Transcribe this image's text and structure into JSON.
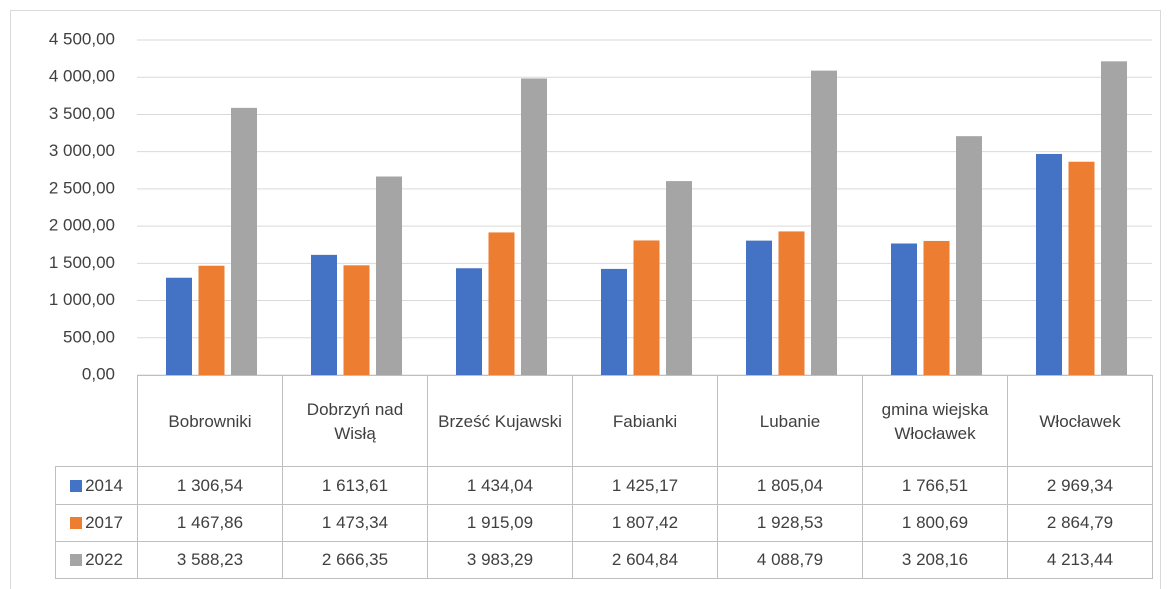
{
  "chart_data": {
    "type": "bar",
    "categories": [
      "Bobrowniki",
      "Dobrzyń nad Wisłą",
      "Brześć Kujawski",
      "Fabianki",
      "Lubanie",
      "gmina wiejska Włocławek",
      "Włocławek"
    ],
    "series": [
      {
        "name": "2014",
        "color": "#4472c4",
        "values": [
          1306.54,
          1613.61,
          1434.04,
          1425.17,
          1805.04,
          1766.51,
          2969.34
        ],
        "value_labels": [
          "1 306,54",
          "1 613,61",
          "1 434,04",
          "1 425,17",
          "1 805,04",
          "1 766,51",
          "2 969,34"
        ]
      },
      {
        "name": "2017",
        "color": "#ed7d31",
        "values": [
          1467.86,
          1473.34,
          1915.09,
          1807.42,
          1928.53,
          1800.69,
          2864.79
        ],
        "value_labels": [
          "1 467,86",
          "1 473,34",
          "1 915,09",
          "1 807,42",
          "1 928,53",
          "1 800,69",
          "2 864,79"
        ]
      },
      {
        "name": "2022",
        "color": "#a5a5a5",
        "values": [
          3588.23,
          2666.35,
          3983.29,
          2604.84,
          4088.79,
          3208.16,
          4213.44
        ],
        "value_labels": [
          "3 588,23",
          "2 666,35",
          "3 983,29",
          "2 604,84",
          "4 088,79",
          "3 208,16",
          "4 213,44"
        ]
      }
    ],
    "ylim": [
      0,
      4500
    ],
    "yticks": [
      {
        "value": 0,
        "label": "0,00"
      },
      {
        "value": 500,
        "label": "500,00"
      },
      {
        "value": 1000,
        "label": "1 000,00"
      },
      {
        "value": 1500,
        "label": "1 500,00"
      },
      {
        "value": 2000,
        "label": "2 000,00"
      },
      {
        "value": 2500,
        "label": "2 500,00"
      },
      {
        "value": 3000,
        "label": "3 000,00"
      },
      {
        "value": 3500,
        "label": "3 500,00"
      },
      {
        "value": 4000,
        "label": "4 000,00"
      },
      {
        "value": 4500,
        "label": "4 500,00"
      }
    ],
    "grid": true,
    "data_table": true
  }
}
